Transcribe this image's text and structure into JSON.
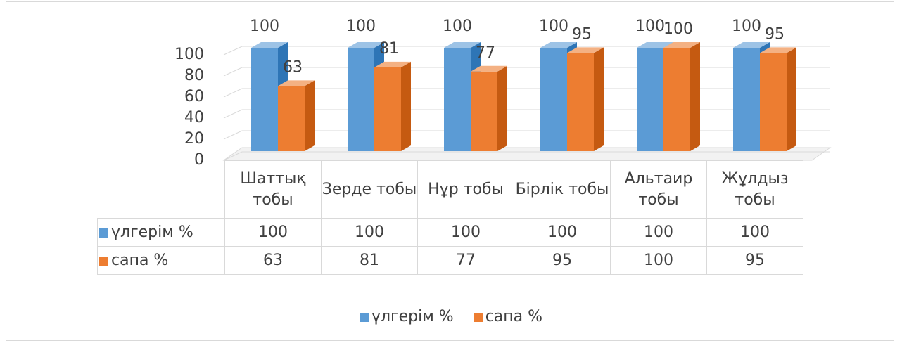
{
  "chart_data": {
    "type": "bar3d",
    "categories": [
      "Шаттық тобы",
      "Зерде тобы",
      "Нұр тобы",
      "Бірлік тобы",
      "Альтаир тобы",
      "Жұлдыз тобы"
    ],
    "series": [
      {
        "name": "үлгерім %",
        "color": "#5b9bd5",
        "values": [
          100,
          100,
          100,
          100,
          100,
          100
        ]
      },
      {
        "name": "сапа %",
        "color": "#ed7d31",
        "values": [
          63,
          81,
          77,
          95,
          100,
          95
        ]
      }
    ],
    "ylim": [
      0,
      100
    ],
    "yticks": [
      0,
      20,
      40,
      60,
      80,
      100
    ],
    "grid": true,
    "legend": "bottom",
    "data_table": true
  }
}
